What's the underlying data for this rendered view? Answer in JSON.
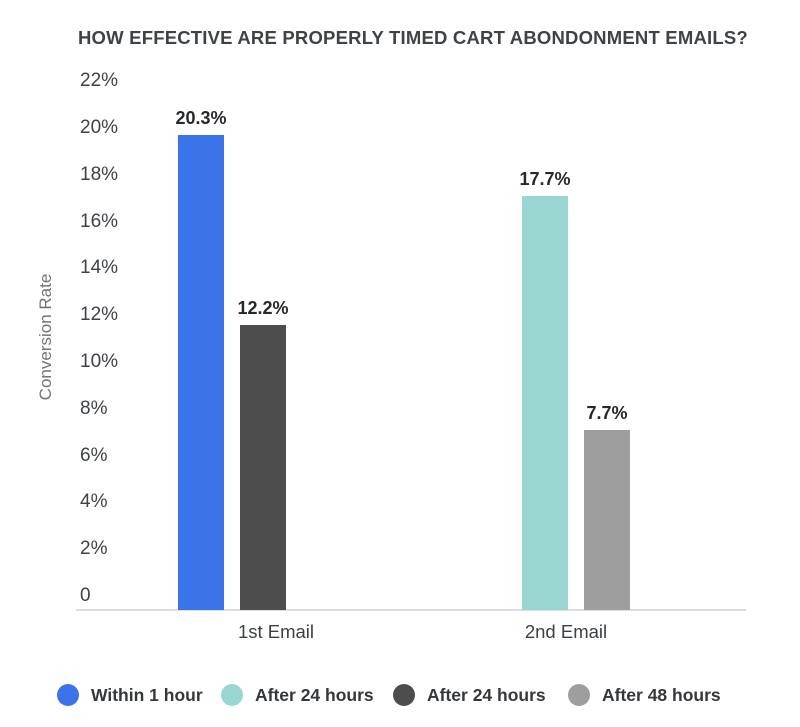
{
  "chart_data": {
    "type": "bar",
    "title": "HOW EFFECTIVE ARE PROPERLY TIMED CART ABONDONMENT EMAILS?",
    "xlabel": "",
    "ylabel": "Conversion Rate",
    "ylim": [
      0,
      22
    ],
    "ytick_step": 2,
    "ytick_labels": [
      "22%",
      "20%",
      "18%",
      "16%",
      "14%",
      "12%",
      "10%",
      "8%",
      "6%",
      "4%",
      "2%",
      "0"
    ],
    "categories": [
      "1st Email",
      "2nd Email"
    ],
    "series": [
      {
        "name": "Within 1 hour",
        "color": "#3b73e8",
        "values": [
          20.3,
          null
        ]
      },
      {
        "name": "After 24 hours",
        "color": "#9ad6d1",
        "values": [
          null,
          17.7
        ]
      },
      {
        "name": "After 24 hours",
        "color": "#4d4d4d",
        "values": [
          12.2,
          null
        ]
      },
      {
        "name": "After 48 hours",
        "color": "#9e9e9e",
        "values": [
          null,
          7.7
        ]
      }
    ],
    "value_labels": {
      "20.3": "20.3%",
      "12.2": "12.2%",
      "17.7": "17.7%",
      "7.7": "7.7%"
    },
    "grid": false,
    "legend_position": "bottom",
    "axis_line_color": "#dcdfe2"
  }
}
